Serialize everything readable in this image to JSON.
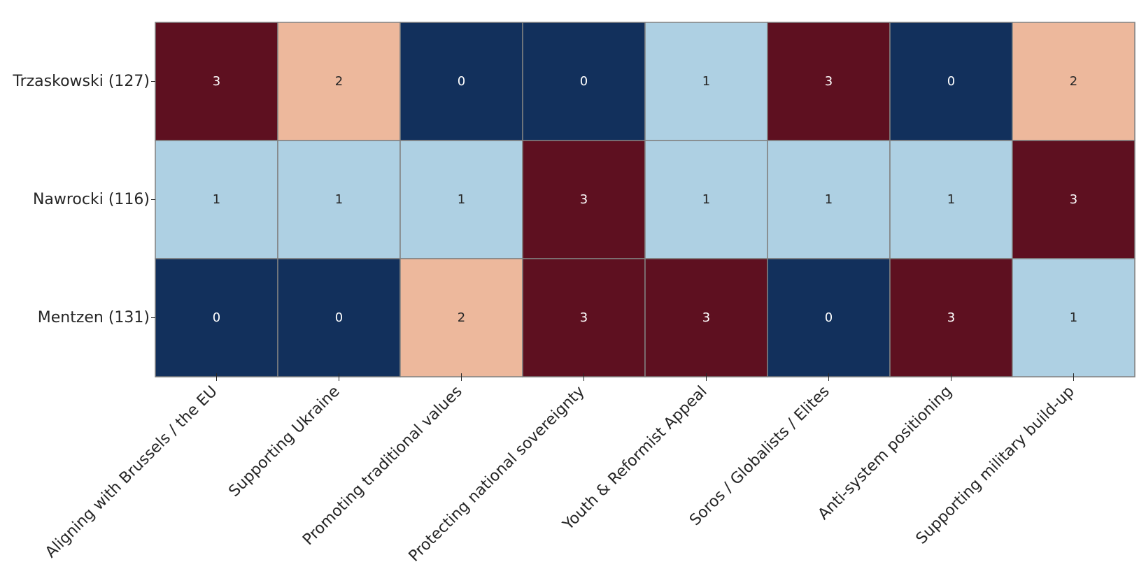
{
  "chart_data": {
    "type": "heatmap",
    "title": "",
    "xlabel": "",
    "ylabel": "",
    "rows": [
      "Trzaskowski (127)",
      "Nawrocki (116)",
      "Mentzen (131)"
    ],
    "columns": [
      "Aligning with Brussels / the EU",
      "Supporting Ukraine",
      "Promoting traditional values",
      "Protecting national sovereignty",
      "Youth & Reformist Appeal",
      "Soros / Globalists / Elites",
      "Anti-system positioning",
      "Supporting military build-up"
    ],
    "values": [
      [
        3,
        2,
        0,
        0,
        1,
        3,
        0,
        2
      ],
      [
        1,
        1,
        1,
        3,
        1,
        1,
        1,
        3
      ],
      [
        0,
        0,
        2,
        3,
        3,
        0,
        3,
        1
      ]
    ],
    "value_colors": {
      "0": "#12305c",
      "1": "#aed0e3",
      "2": "#edb89c",
      "3": "#5e1020"
    },
    "value_text_colors": {
      "0": "#ffffff",
      "1": "#262626",
      "2": "#262626",
      "3": "#ffffff"
    },
    "cell_border_color": "#808080",
    "colorbar": false,
    "grid": false
  }
}
